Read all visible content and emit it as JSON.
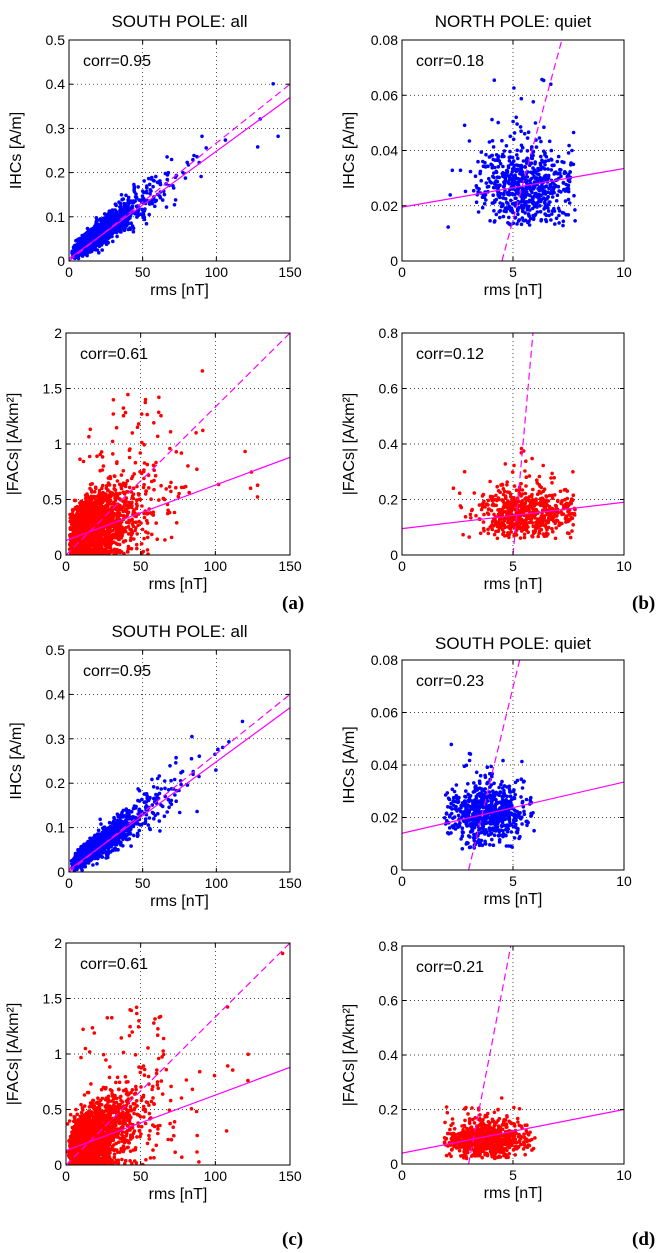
{
  "panel_letters": [
    "(a)",
    "(b)",
    "(c)",
    "(d)"
  ],
  "colors": {
    "ihc_points": "#0000ff",
    "fac_points": "#ff0000",
    "fit_line": "#ff00ff",
    "axes": "#000000"
  },
  "chart_data": [
    {
      "id": "a-ihc",
      "type": "scatter",
      "title": "SOUTH POLE: all",
      "corr": "corr=0.95",
      "xlabel": "rms [nT]",
      "ylabel": "IHCs [A/m]",
      "xlim": [
        0,
        150
      ],
      "ylim": [
        0,
        0.5
      ],
      "xticks": [
        "0",
        "50",
        "100",
        "150"
      ],
      "yticks": [
        "0",
        "0.1",
        "0.2",
        "0.3",
        "0.4",
        "0.5"
      ],
      "grid": "dotted",
      "series_color": "#0000ff",
      "cloud": {
        "n": 2200,
        "xmode": 16,
        "xmax": 148,
        "slope": 0.0024,
        "intercept": 0.012,
        "spread": 0.18,
        "noise": 0.006
      },
      "fit_line": {
        "x": [
          0,
          150
        ],
        "y": [
          0.005,
          0.37
        ]
      },
      "dashed_line": {
        "x": [
          0,
          150
        ],
        "y": [
          0.0,
          0.4
        ]
      }
    },
    {
      "id": "b-ihc",
      "type": "scatter",
      "title": "NORTH POLE: quiet",
      "corr": "corr=0.18",
      "xlabel": "rms [nT]",
      "ylabel": "IHCs [A/m]",
      "xlim": [
        0,
        10
      ],
      "ylim": [
        0,
        0.08
      ],
      "xticks": [
        "0",
        "5",
        "10"
      ],
      "yticks": [
        "0",
        "0.02",
        "0.04",
        "0.06",
        "0.08"
      ],
      "grid": "dotted",
      "series_color": "#0000ff",
      "cloud": {
        "n": 650,
        "xmin": 2.0,
        "xmax": 7.8,
        "xcenter": 5.6,
        "xsd": 1.1,
        "ycenter": 0.027,
        "ysd": 0.0075,
        "ymin": 0.012,
        "ymax": 0.066
      },
      "fit_line": {
        "x": [
          0,
          10
        ],
        "y": [
          0.0195,
          0.0335
        ]
      },
      "dashed_line": {
        "x": [
          4.5,
          7.2
        ],
        "y": [
          0.0,
          0.08
        ]
      }
    },
    {
      "id": "a-fac",
      "type": "scatter",
      "title": "",
      "corr": "corr=0.61",
      "xlabel": "rms [nT]",
      "ylabel": "|FACs| [A/km²]",
      "xlim": [
        0,
        150
      ],
      "ylim": [
        0,
        2
      ],
      "xticks": [
        "0",
        "50",
        "100",
        "150"
      ],
      "yticks": [
        "0",
        "0.5",
        "1",
        "1.5",
        "2"
      ],
      "grid": "dotted",
      "series_color": "#ff0000",
      "cloud": {
        "n": 2200,
        "xmode": 16,
        "xmax": 148,
        "slope": 0.0055,
        "intercept": 0.14,
        "spread": 0.55,
        "noise": 0.05,
        "outliers": 40
      },
      "fit_line": {
        "x": [
          0,
          150
        ],
        "y": [
          0.13,
          0.88
        ]
      },
      "dashed_line": {
        "x": [
          0,
          150
        ],
        "y": [
          0.0,
          2.0
        ]
      }
    },
    {
      "id": "b-fac",
      "type": "scatter",
      "title": "",
      "corr": "corr=0.12",
      "xlabel": "rms [nT]",
      "ylabel": "|FACs| [A/km²]",
      "xlim": [
        0,
        10
      ],
      "ylim": [
        0,
        0.8
      ],
      "xticks": [
        "0",
        "5",
        "10"
      ],
      "yticks": [
        "0",
        "0.2",
        "0.4",
        "0.6",
        "0.8"
      ],
      "grid": "dotted",
      "series_color": "#ff0000",
      "cloud": {
        "n": 650,
        "xmin": 2.0,
        "xmax": 7.8,
        "xcenter": 5.6,
        "xsd": 1.1,
        "ycenter": 0.15,
        "ysd": 0.045,
        "ymin": 0.06,
        "ymax": 0.55
      },
      "fit_line": {
        "x": [
          0,
          10
        ],
        "y": [
          0.095,
          0.19
        ]
      },
      "dashed_line": {
        "x": [
          5.0,
          5.9
        ],
        "y": [
          0.0,
          0.8
        ]
      }
    },
    {
      "id": "c-ihc",
      "type": "scatter",
      "title": "SOUTH POLE: all",
      "corr": "corr=0.95",
      "xlabel": "rms [nT]",
      "ylabel": "IHCs [A/m]",
      "xlim": [
        0,
        150
      ],
      "ylim": [
        0,
        0.5
      ],
      "xticks": [
        "0",
        "50",
        "100",
        "150"
      ],
      "yticks": [
        "0",
        "0.1",
        "0.2",
        "0.3",
        "0.4",
        "0.5"
      ],
      "grid": "dotted",
      "series_color": "#0000ff",
      "cloud": {
        "n": 2200,
        "xmode": 16,
        "xmax": 148,
        "slope": 0.0024,
        "intercept": 0.012,
        "spread": 0.18,
        "noise": 0.006
      },
      "fit_line": {
        "x": [
          0,
          150
        ],
        "y": [
          0.005,
          0.37
        ]
      },
      "dashed_line": {
        "x": [
          0,
          150
        ],
        "y": [
          0.0,
          0.4
        ]
      }
    },
    {
      "id": "d-ihc",
      "type": "scatter",
      "title": "SOUTH POLE: quiet",
      "corr": "corr=0.23",
      "xlabel": "rms [nT]",
      "ylabel": "IHCs [A/m]",
      "xlim": [
        0,
        10
      ],
      "ylim": [
        0,
        0.08
      ],
      "xticks": [
        "0",
        "5",
        "10"
      ],
      "yticks": [
        "0",
        "0.02",
        "0.04",
        "0.06",
        "0.08"
      ],
      "grid": "dotted",
      "series_color": "#0000ff",
      "cloud": {
        "n": 700,
        "xmin": 1.9,
        "xmax": 6.0,
        "xcenter": 3.8,
        "xsd": 0.9,
        "ycenter": 0.021,
        "ysd": 0.0055,
        "ymin": 0.008,
        "ymax": 0.064
      },
      "fit_line": {
        "x": [
          0,
          10
        ],
        "y": [
          0.014,
          0.0335
        ]
      },
      "dashed_line": {
        "x": [
          3.0,
          5.3
        ],
        "y": [
          0.0,
          0.08
        ]
      }
    },
    {
      "id": "c-fac",
      "type": "scatter",
      "title": "",
      "corr": "corr=0.61",
      "xlabel": "rms [nT]",
      "ylabel": "|FACs| [A/km²]",
      "xlim": [
        0,
        150
      ],
      "ylim": [
        0,
        2
      ],
      "xticks": [
        "0",
        "50",
        "100",
        "150"
      ],
      "yticks": [
        "0",
        "0.5",
        "1",
        "1.5",
        "2"
      ],
      "grid": "dotted",
      "series_color": "#ff0000",
      "cloud": {
        "n": 2200,
        "xmode": 16,
        "xmax": 148,
        "slope": 0.0055,
        "intercept": 0.14,
        "spread": 0.55,
        "noise": 0.05,
        "outliers": 40
      },
      "fit_line": {
        "x": [
          0,
          150
        ],
        "y": [
          0.13,
          0.88
        ]
      },
      "dashed_line": {
        "x": [
          0,
          150
        ],
        "y": [
          0.0,
          2.0
        ]
      }
    },
    {
      "id": "d-fac",
      "type": "scatter",
      "title": "",
      "corr": "corr=0.21",
      "xlabel": "rms [nT]",
      "ylabel": "|FACs| [A/km²]",
      "xlim": [
        0,
        10
      ],
      "ylim": [
        0,
        0.8
      ],
      "xticks": [
        "0",
        "5",
        "10"
      ],
      "yticks": [
        "0",
        "0.2",
        "0.4",
        "0.6",
        "0.8"
      ],
      "grid": "dotted",
      "series_color": "#ff0000",
      "cloud": {
        "n": 700,
        "xmin": 1.9,
        "xmax": 6.0,
        "xcenter": 3.8,
        "xsd": 0.9,
        "ycenter": 0.09,
        "ysd": 0.035,
        "ymin": 0.02,
        "ymax": 0.33
      },
      "fit_line": {
        "x": [
          0,
          10
        ],
        "y": [
          0.04,
          0.2
        ]
      },
      "dashed_line": {
        "x": [
          3.0,
          4.9
        ],
        "y": [
          0.0,
          0.8
        ]
      }
    }
  ]
}
